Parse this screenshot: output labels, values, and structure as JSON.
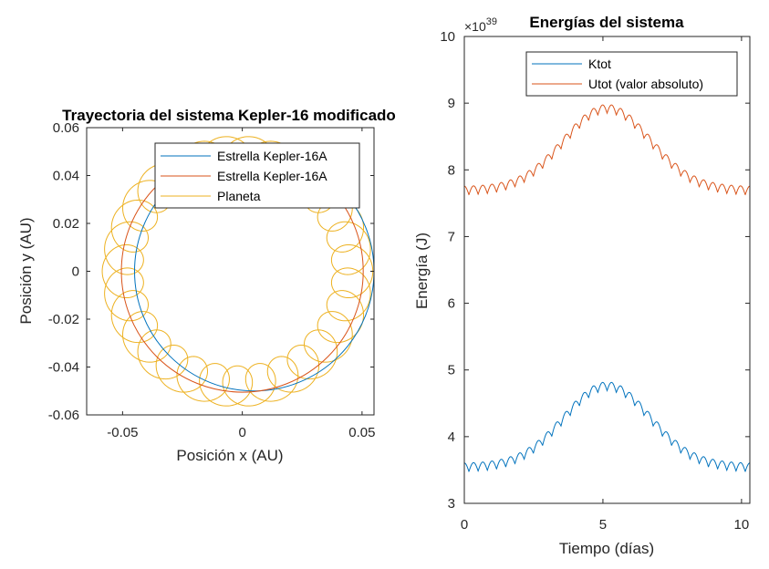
{
  "charts": [
    {
      "id": "left",
      "title": "Trayectoria del sistema Kepler-16 modificado",
      "xlabel": "Posición x (AU)",
      "ylabel": "Posición y (AU)"
    },
    {
      "id": "right",
      "title": "Energías del sistema",
      "xlabel": "Tiempo (días)",
      "ylabel": "Energía (J)",
      "exponent_base": "×10",
      "exponent_power": "39"
    }
  ],
  "chart_data": [
    {
      "type": "line",
      "title": "Trayectoria del sistema Kepler-16 modificado",
      "xlabel": "Posición x (AU)",
      "ylabel": "Posición y (AU)",
      "xlim": [
        -0.065,
        0.055
      ],
      "ylim": [
        -0.06,
        0.06
      ],
      "xticks": [
        -0.05,
        0,
        0.05
      ],
      "xtick_labels": [
        "-0.05",
        "0",
        "0.05"
      ],
      "yticks": [
        -0.06,
        -0.04,
        -0.02,
        0,
        0.02,
        0.04,
        0.06
      ],
      "ytick_labels": [
        "-0.06",
        "-0.04",
        "-0.02",
        "0",
        "0.02",
        "0.04",
        "0.06"
      ],
      "grid": false,
      "legend_position": "top-right",
      "colors": [
        "#0072BD",
        "#D95319",
        "#EDB120"
      ],
      "series": [
        {
          "name": "Estrella Kepler-16A",
          "shape": "circle",
          "center": [
            0.005,
            0.0
          ],
          "radius": 0.05
        },
        {
          "name": "Estrella Kepler-16A",
          "shape": "circle",
          "center": [
            0.0,
            0.0
          ],
          "radius": 0.0505
        },
        {
          "name": "Planeta",
          "shape": "epicycle",
          "center": [
            -0.002,
            0.0
          ],
          "radius": 0.048,
          "loop_radius": 0.0085,
          "loops": 31
        }
      ]
    },
    {
      "type": "line",
      "title": "Energías del sistema",
      "xlabel": "Tiempo (días)",
      "ylabel": "Energía (J)",
      "xlim": [
        0,
        10.3
      ],
      "ylim": [
        3,
        10
      ],
      "xticks": [
        0,
        5,
        10
      ],
      "xtick_labels": [
        "0",
        "5",
        "10"
      ],
      "yticks": [
        3,
        4,
        5,
        6,
        7,
        8,
        9,
        10
      ],
      "ytick_labels": [
        "3",
        "4",
        "5",
        "6",
        "7",
        "8",
        "9",
        "10"
      ],
      "y_multiplier": "×10^39",
      "grid": false,
      "legend_position": "top-right",
      "colors": [
        "#0072BD",
        "#D95319"
      ],
      "series": [
        {
          "name": "Ktot",
          "base": 3.6,
          "peak": 4.82,
          "peak_x": 5.15,
          "ripple": 0.13,
          "ripples": 31
        },
        {
          "name": "Utot (valor absoluto)",
          "base": 7.75,
          "peak": 8.98,
          "peak_x": 5.15,
          "ripple": 0.13,
          "ripples": 31
        }
      ]
    }
  ]
}
